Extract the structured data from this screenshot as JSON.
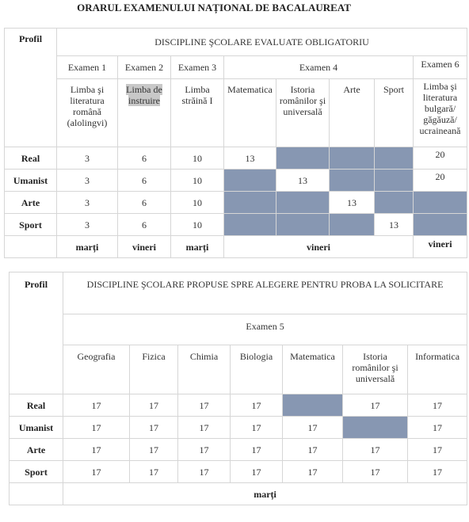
{
  "title": "ORARUL EXAMENULUI NAȚIONAL DE BACALAUREAT",
  "colors": {
    "shade": "#8797b2",
    "highlight": "#c8c8c8"
  },
  "table1": {
    "profil_label": "Profil",
    "heading": "DISCIPLINE ŞCOLARE EVALUATE OBLIGATORIU",
    "exams": [
      "Examen 1",
      "Examen  2",
      "Examen  3",
      "Examen 4",
      "Examen 6"
    ],
    "subjects": {
      "s1": "Limba şi literatura română (alolingvi)",
      "s2": "Limba de instruire",
      "s3": "Limba străină I",
      "s4": "Matematica",
      "s5": "Istoria românilor şi universală",
      "s6": "Arte",
      "s7": "Sport",
      "s8": "Limba şi literatura bulgară/ găgăuză/ ucraineană"
    },
    "rows": [
      {
        "profile": "Real",
        "e1": "3",
        "e2": "6",
        "e3": "10",
        "e4": "13",
        "e6": "20"
      },
      {
        "profile": "Umanist",
        "e1": "3",
        "e2": "6",
        "e3": "10",
        "e4": "13",
        "e6": "20"
      },
      {
        "profile": "Arte",
        "e1": "3",
        "e2": "6",
        "e3": "10",
        "e4": "13"
      },
      {
        "profile": "Sport",
        "e1": "3",
        "e2": "6",
        "e3": "10",
        "e4": "13"
      }
    ],
    "days": {
      "e1": "marți",
      "e2": "vineri",
      "e3": "marți",
      "e4": "vineri",
      "e6": "vineri"
    }
  },
  "table2": {
    "profil_label": "Profil",
    "heading": "DISCIPLINE ŞCOLARE PROPUSE SPRE ALEGERE PENTRU PROBA LA SOLICITARE",
    "exam": "Examen 5",
    "subjects": [
      "Geografia",
      "Fizica",
      "Chimia",
      "Biologia",
      "Matematica",
      "Istoria românilor şi universală",
      "Informatica"
    ],
    "rows": [
      {
        "profile": "Real",
        "v": [
          "17",
          "17",
          "17",
          "17",
          "",
          "17",
          "17"
        ]
      },
      {
        "profile": "Umanist",
        "v": [
          "17",
          "17",
          "17",
          "17",
          "17",
          "",
          "17"
        ]
      },
      {
        "profile": "Arte",
        "v": [
          "17",
          "17",
          "17",
          "17",
          "17",
          "17",
          "17"
        ]
      },
      {
        "profile": "Sport",
        "v": [
          "17",
          "17",
          "17",
          "17",
          "17",
          "17",
          "17"
        ]
      }
    ],
    "day": "marți"
  }
}
